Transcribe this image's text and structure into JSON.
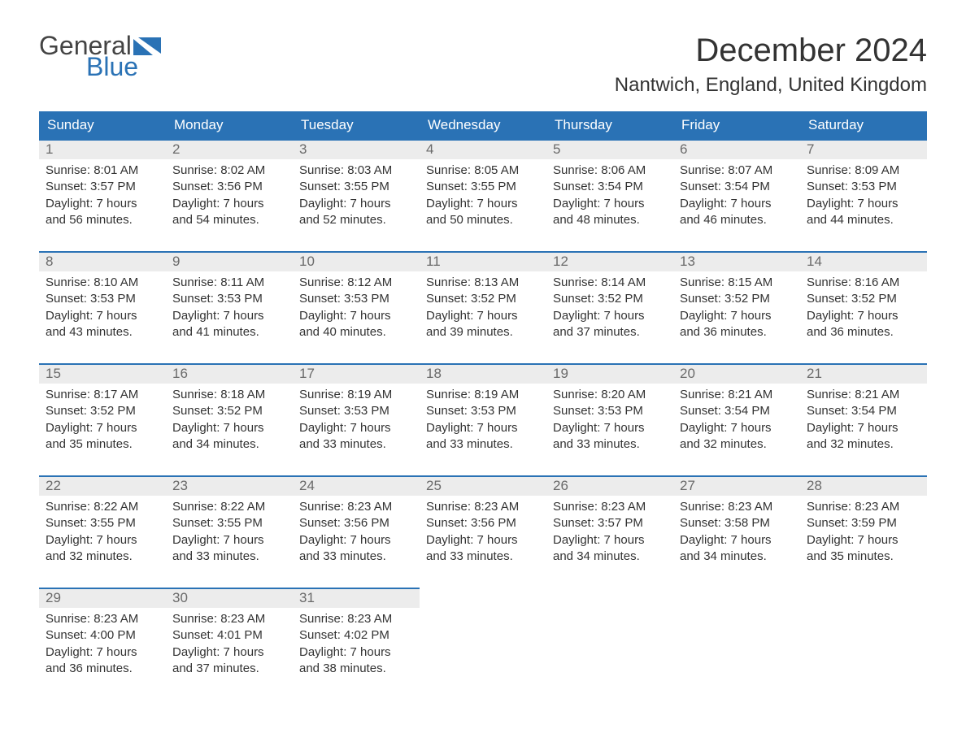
{
  "logo": {
    "text_general": "General",
    "text_blue": "Blue",
    "flag_color": "#2a72b5"
  },
  "title": "December 2024",
  "location": "Nantwich, England, United Kingdom",
  "colors": {
    "header_bg": "#2a72b5",
    "header_text": "#ffffff",
    "daynum_bg": "#ececec",
    "daynum_border": "#2a72b5",
    "daynum_text": "#6a6a6a",
    "body_text": "#333333",
    "background": "#ffffff"
  },
  "typography": {
    "title_fontsize": 40,
    "location_fontsize": 24,
    "header_fontsize": 17,
    "daynum_fontsize": 17,
    "content_fontsize": 15
  },
  "weekdays": [
    "Sunday",
    "Monday",
    "Tuesday",
    "Wednesday",
    "Thursday",
    "Friday",
    "Saturday"
  ],
  "days": [
    {
      "n": "1",
      "sunrise": "Sunrise: 8:01 AM",
      "sunset": "Sunset: 3:57 PM",
      "d1": "Daylight: 7 hours",
      "d2": "and 56 minutes."
    },
    {
      "n": "2",
      "sunrise": "Sunrise: 8:02 AM",
      "sunset": "Sunset: 3:56 PM",
      "d1": "Daylight: 7 hours",
      "d2": "and 54 minutes."
    },
    {
      "n": "3",
      "sunrise": "Sunrise: 8:03 AM",
      "sunset": "Sunset: 3:55 PM",
      "d1": "Daylight: 7 hours",
      "d2": "and 52 minutes."
    },
    {
      "n": "4",
      "sunrise": "Sunrise: 8:05 AM",
      "sunset": "Sunset: 3:55 PM",
      "d1": "Daylight: 7 hours",
      "d2": "and 50 minutes."
    },
    {
      "n": "5",
      "sunrise": "Sunrise: 8:06 AM",
      "sunset": "Sunset: 3:54 PM",
      "d1": "Daylight: 7 hours",
      "d2": "and 48 minutes."
    },
    {
      "n": "6",
      "sunrise": "Sunrise: 8:07 AM",
      "sunset": "Sunset: 3:54 PM",
      "d1": "Daylight: 7 hours",
      "d2": "and 46 minutes."
    },
    {
      "n": "7",
      "sunrise": "Sunrise: 8:09 AM",
      "sunset": "Sunset: 3:53 PM",
      "d1": "Daylight: 7 hours",
      "d2": "and 44 minutes."
    },
    {
      "n": "8",
      "sunrise": "Sunrise: 8:10 AM",
      "sunset": "Sunset: 3:53 PM",
      "d1": "Daylight: 7 hours",
      "d2": "and 43 minutes."
    },
    {
      "n": "9",
      "sunrise": "Sunrise: 8:11 AM",
      "sunset": "Sunset: 3:53 PM",
      "d1": "Daylight: 7 hours",
      "d2": "and 41 minutes."
    },
    {
      "n": "10",
      "sunrise": "Sunrise: 8:12 AM",
      "sunset": "Sunset: 3:53 PM",
      "d1": "Daylight: 7 hours",
      "d2": "and 40 minutes."
    },
    {
      "n": "11",
      "sunrise": "Sunrise: 8:13 AM",
      "sunset": "Sunset: 3:52 PM",
      "d1": "Daylight: 7 hours",
      "d2": "and 39 minutes."
    },
    {
      "n": "12",
      "sunrise": "Sunrise: 8:14 AM",
      "sunset": "Sunset: 3:52 PM",
      "d1": "Daylight: 7 hours",
      "d2": "and 37 minutes."
    },
    {
      "n": "13",
      "sunrise": "Sunrise: 8:15 AM",
      "sunset": "Sunset: 3:52 PM",
      "d1": "Daylight: 7 hours",
      "d2": "and 36 minutes."
    },
    {
      "n": "14",
      "sunrise": "Sunrise: 8:16 AM",
      "sunset": "Sunset: 3:52 PM",
      "d1": "Daylight: 7 hours",
      "d2": "and 36 minutes."
    },
    {
      "n": "15",
      "sunrise": "Sunrise: 8:17 AM",
      "sunset": "Sunset: 3:52 PM",
      "d1": "Daylight: 7 hours",
      "d2": "and 35 minutes."
    },
    {
      "n": "16",
      "sunrise": "Sunrise: 8:18 AM",
      "sunset": "Sunset: 3:52 PM",
      "d1": "Daylight: 7 hours",
      "d2": "and 34 minutes."
    },
    {
      "n": "17",
      "sunrise": "Sunrise: 8:19 AM",
      "sunset": "Sunset: 3:53 PM",
      "d1": "Daylight: 7 hours",
      "d2": "and 33 minutes."
    },
    {
      "n": "18",
      "sunrise": "Sunrise: 8:19 AM",
      "sunset": "Sunset: 3:53 PM",
      "d1": "Daylight: 7 hours",
      "d2": "and 33 minutes."
    },
    {
      "n": "19",
      "sunrise": "Sunrise: 8:20 AM",
      "sunset": "Sunset: 3:53 PM",
      "d1": "Daylight: 7 hours",
      "d2": "and 33 minutes."
    },
    {
      "n": "20",
      "sunrise": "Sunrise: 8:21 AM",
      "sunset": "Sunset: 3:54 PM",
      "d1": "Daylight: 7 hours",
      "d2": "and 32 minutes."
    },
    {
      "n": "21",
      "sunrise": "Sunrise: 8:21 AM",
      "sunset": "Sunset: 3:54 PM",
      "d1": "Daylight: 7 hours",
      "d2": "and 32 minutes."
    },
    {
      "n": "22",
      "sunrise": "Sunrise: 8:22 AM",
      "sunset": "Sunset: 3:55 PM",
      "d1": "Daylight: 7 hours",
      "d2": "and 32 minutes."
    },
    {
      "n": "23",
      "sunrise": "Sunrise: 8:22 AM",
      "sunset": "Sunset: 3:55 PM",
      "d1": "Daylight: 7 hours",
      "d2": "and 33 minutes."
    },
    {
      "n": "24",
      "sunrise": "Sunrise: 8:23 AM",
      "sunset": "Sunset: 3:56 PM",
      "d1": "Daylight: 7 hours",
      "d2": "and 33 minutes."
    },
    {
      "n": "25",
      "sunrise": "Sunrise: 8:23 AM",
      "sunset": "Sunset: 3:56 PM",
      "d1": "Daylight: 7 hours",
      "d2": "and 33 minutes."
    },
    {
      "n": "26",
      "sunrise": "Sunrise: 8:23 AM",
      "sunset": "Sunset: 3:57 PM",
      "d1": "Daylight: 7 hours",
      "d2": "and 34 minutes."
    },
    {
      "n": "27",
      "sunrise": "Sunrise: 8:23 AM",
      "sunset": "Sunset: 3:58 PM",
      "d1": "Daylight: 7 hours",
      "d2": "and 34 minutes."
    },
    {
      "n": "28",
      "sunrise": "Sunrise: 8:23 AM",
      "sunset": "Sunset: 3:59 PM",
      "d1": "Daylight: 7 hours",
      "d2": "and 35 minutes."
    },
    {
      "n": "29",
      "sunrise": "Sunrise: 8:23 AM",
      "sunset": "Sunset: 4:00 PM",
      "d1": "Daylight: 7 hours",
      "d2": "and 36 minutes."
    },
    {
      "n": "30",
      "sunrise": "Sunrise: 8:23 AM",
      "sunset": "Sunset: 4:01 PM",
      "d1": "Daylight: 7 hours",
      "d2": "and 37 minutes."
    },
    {
      "n": "31",
      "sunrise": "Sunrise: 8:23 AM",
      "sunset": "Sunset: 4:02 PM",
      "d1": "Daylight: 7 hours",
      "d2": "and 38 minutes."
    }
  ],
  "layout": {
    "columns": 7,
    "start_offset": 0,
    "trailing_empty": 4
  }
}
